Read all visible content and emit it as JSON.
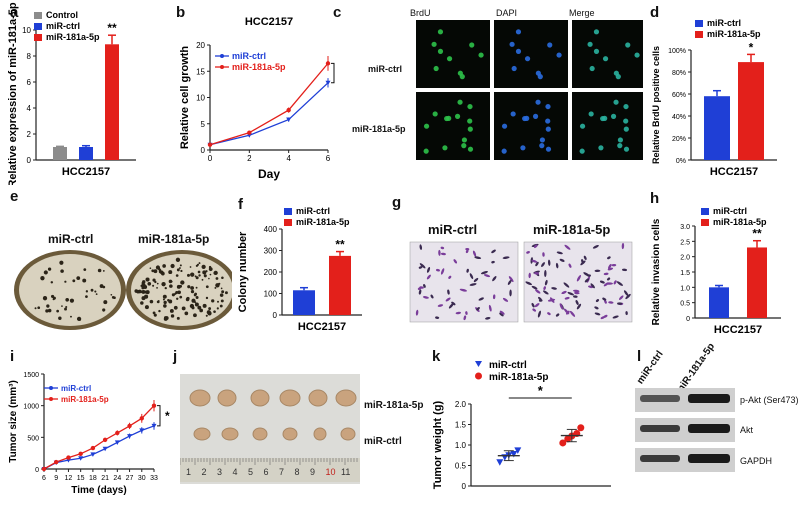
{
  "panel_labels": [
    "a",
    "b",
    "c",
    "d",
    "e",
    "f",
    "g",
    "h",
    "i",
    "j",
    "k",
    "l"
  ],
  "colors": {
    "control": "#8c8c8c",
    "ctrl": "#1f3fd6",
    "mir": "#e3201b",
    "axis": "#222222"
  },
  "chart_data": [
    {
      "id": "a",
      "type": "bar",
      "ylabel": "Relative expression of miR-181a-5p",
      "xlabel": "HCC2157",
      "series_names": [
        "Control",
        "miR-ctrl",
        "miR-181a-5p"
      ],
      "values": [
        1.0,
        1.0,
        8.9
      ],
      "errors": [
        0.05,
        0.1,
        0.7
      ],
      "ylim": [
        0,
        10
      ],
      "yticks": [
        "0",
        "2",
        "4",
        "6",
        "8",
        "10"
      ],
      "annotation": "**"
    },
    {
      "id": "b",
      "type": "line",
      "title": "HCC2157",
      "ylabel": "Relative cell growth",
      "xlabel": "Day",
      "x": [
        0,
        2,
        4,
        6
      ],
      "xticks": [
        "0",
        "2",
        "4",
        "6"
      ],
      "ylim": [
        0,
        20
      ],
      "yticks": [
        "0",
        "5",
        "10",
        "15",
        "20"
      ],
      "series": [
        {
          "name": "miR-ctrl",
          "values": [
            1.0,
            2.8,
            5.8,
            12.8
          ],
          "errors": [
            0.1,
            0.3,
            0.4,
            0.9
          ]
        },
        {
          "name": "miR-181a-5p",
          "values": [
            1.0,
            3.3,
            7.6,
            16.5
          ],
          "errors": [
            0.1,
            0.3,
            0.5,
            1.4
          ]
        }
      ],
      "annotation": "*"
    },
    {
      "id": "d",
      "type": "bar",
      "ylabel": "Relative BrdU positive cells",
      "xlabel": "HCC2157",
      "series_names": [
        "miR-ctrl",
        "miR-181a-5p"
      ],
      "values": [
        58,
        89
      ],
      "errors": [
        5,
        7
      ],
      "ylim": [
        0,
        100
      ],
      "yticks": [
        "0%",
        "20%",
        "40%",
        "60%",
        "80%",
        "100%"
      ],
      "annotation": "*"
    },
    {
      "id": "f",
      "type": "bar",
      "ylabel": "Colony number",
      "xlabel": "HCC2157",
      "series_names": [
        "miR-ctrl",
        "miR-181a-5p"
      ],
      "values": [
        115,
        275
      ],
      "errors": [
        12,
        20
      ],
      "ylim": [
        0,
        400
      ],
      "yticks": [
        "0",
        "100",
        "200",
        "300",
        "400"
      ],
      "annotation": "**"
    },
    {
      "id": "h",
      "type": "bar",
      "ylabel": "Relative invasion cells",
      "xlabel": "HCC2157",
      "series_names": [
        "miR-ctrl",
        "miR-181a-5p"
      ],
      "values": [
        1.0,
        2.3
      ],
      "errors": [
        0.06,
        0.22
      ],
      "ylim": [
        0,
        3.0
      ],
      "yticks": [
        "0",
        "0.5",
        "1.0",
        "1.5",
        "2.0",
        "2.5",
        "3.0"
      ],
      "annotation": "**"
    },
    {
      "id": "i",
      "type": "line",
      "ylabel": "Tumor size (mm³)",
      "xlabel": "Time (days)",
      "x": [
        6,
        9,
        12,
        15,
        18,
        21,
        24,
        27,
        30,
        33
      ],
      "xticks": [
        "6",
        "9",
        "12",
        "15",
        "18",
        "21",
        "24",
        "27",
        "30",
        "33"
      ],
      "ylim": [
        0,
        1500
      ],
      "yticks": [
        "0",
        "500",
        "1000",
        "1500"
      ],
      "series": [
        {
          "name": "miR-ctrl",
          "values": [
            0,
            100,
            140,
            170,
            230,
            320,
            420,
            520,
            610,
            680
          ],
          "errors": [
            0,
            10,
            15,
            15,
            20,
            25,
            30,
            40,
            50,
            60
          ]
        },
        {
          "name": "miR-181a-5p",
          "values": [
            0,
            110,
            180,
            240,
            330,
            460,
            570,
            680,
            800,
            1000
          ],
          "errors": [
            0,
            10,
            15,
            20,
            25,
            30,
            40,
            50,
            70,
            90
          ]
        }
      ],
      "annotation": "*"
    },
    {
      "id": "k",
      "type": "scatter",
      "ylabel": "Tumor weight (g)",
      "ylim": [
        0,
        2.0
      ],
      "yticks": [
        "0",
        "0.5",
        "1.0",
        "1.5",
        "2.0"
      ],
      "series": [
        {
          "name": "miR-ctrl",
          "values": [
            0.58,
            0.7,
            0.75,
            0.78,
            0.87
          ],
          "mean": 0.74,
          "err": 0.12
        },
        {
          "name": "miR-181a-5p",
          "values": [
            1.05,
            1.15,
            1.22,
            1.28,
            1.42
          ],
          "mean": 1.23,
          "err": 0.15
        }
      ],
      "annotation": "*"
    }
  ],
  "panel_c": {
    "columns": [
      "BrdU",
      "DAPI",
      "Merge"
    ],
    "rows": [
      "miR-ctrl",
      "miR-181a-5p"
    ]
  },
  "panel_e": {
    "labels": [
      "miR-ctrl",
      "miR-181a-5p"
    ]
  },
  "panel_g": {
    "labels": [
      "miR-ctrl",
      "miR-181a-5p"
    ]
  },
  "panel_j": {
    "rows": [
      "miR-181a-5p",
      "miR-ctrl"
    ],
    "ruler": [
      "1",
      "2",
      "3",
      "4",
      "5",
      "6",
      "7",
      "8",
      "9",
      "10",
      "11"
    ]
  },
  "panel_l": {
    "columns": [
      "miR-ctrl",
      "miR-181a-5p"
    ],
    "rows": [
      "p-Akt (Ser473)",
      "Akt",
      "GAPDH"
    ]
  }
}
